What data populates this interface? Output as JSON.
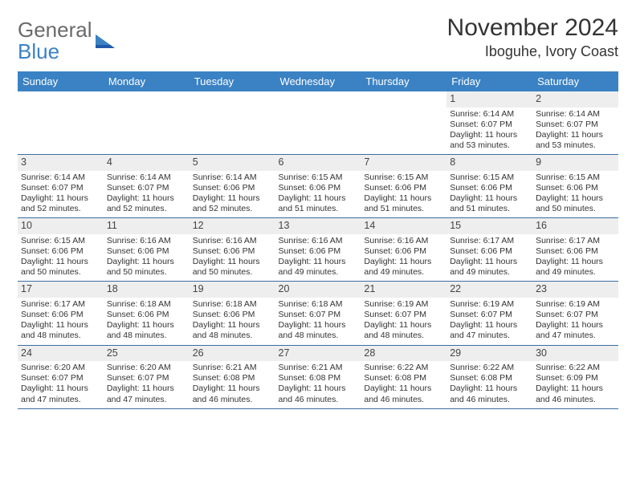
{
  "brand": {
    "name_top": "General",
    "name_bottom": "Blue",
    "text_color": "#6a6a6a",
    "accent_color": "#3b82c4"
  },
  "title": "November 2024",
  "subtitle": "Iboguhe, Ivory Coast",
  "colors": {
    "header_bg": "#3b82c4",
    "header_text": "#ffffff",
    "daynum_bg": "#eeeeee",
    "row_divider": "#3b6ea0",
    "body_text": "#333333"
  },
  "typography": {
    "title_fontsize": 30,
    "subtitle_fontsize": 18,
    "weekday_fontsize": 13,
    "daynum_fontsize": 12.5,
    "cell_fontsize": 10.5
  },
  "weekdays": [
    "Sunday",
    "Monday",
    "Tuesday",
    "Wednesday",
    "Thursday",
    "Friday",
    "Saturday"
  ],
  "weeks": [
    [
      {
        "n": "",
        "sr": "",
        "ss": "",
        "dl": ""
      },
      {
        "n": "",
        "sr": "",
        "ss": "",
        "dl": ""
      },
      {
        "n": "",
        "sr": "",
        "ss": "",
        "dl": ""
      },
      {
        "n": "",
        "sr": "",
        "ss": "",
        "dl": ""
      },
      {
        "n": "",
        "sr": "",
        "ss": "",
        "dl": ""
      },
      {
        "n": "1",
        "sr": "Sunrise: 6:14 AM",
        "ss": "Sunset: 6:07 PM",
        "dl": "Daylight: 11 hours and 53 minutes."
      },
      {
        "n": "2",
        "sr": "Sunrise: 6:14 AM",
        "ss": "Sunset: 6:07 PM",
        "dl": "Daylight: 11 hours and 53 minutes."
      }
    ],
    [
      {
        "n": "3",
        "sr": "Sunrise: 6:14 AM",
        "ss": "Sunset: 6:07 PM",
        "dl": "Daylight: 11 hours and 52 minutes."
      },
      {
        "n": "4",
        "sr": "Sunrise: 6:14 AM",
        "ss": "Sunset: 6:07 PM",
        "dl": "Daylight: 11 hours and 52 minutes."
      },
      {
        "n": "5",
        "sr": "Sunrise: 6:14 AM",
        "ss": "Sunset: 6:06 PM",
        "dl": "Daylight: 11 hours and 52 minutes."
      },
      {
        "n": "6",
        "sr": "Sunrise: 6:15 AM",
        "ss": "Sunset: 6:06 PM",
        "dl": "Daylight: 11 hours and 51 minutes."
      },
      {
        "n": "7",
        "sr": "Sunrise: 6:15 AM",
        "ss": "Sunset: 6:06 PM",
        "dl": "Daylight: 11 hours and 51 minutes."
      },
      {
        "n": "8",
        "sr": "Sunrise: 6:15 AM",
        "ss": "Sunset: 6:06 PM",
        "dl": "Daylight: 11 hours and 51 minutes."
      },
      {
        "n": "9",
        "sr": "Sunrise: 6:15 AM",
        "ss": "Sunset: 6:06 PM",
        "dl": "Daylight: 11 hours and 50 minutes."
      }
    ],
    [
      {
        "n": "10",
        "sr": "Sunrise: 6:15 AM",
        "ss": "Sunset: 6:06 PM",
        "dl": "Daylight: 11 hours and 50 minutes."
      },
      {
        "n": "11",
        "sr": "Sunrise: 6:16 AM",
        "ss": "Sunset: 6:06 PM",
        "dl": "Daylight: 11 hours and 50 minutes."
      },
      {
        "n": "12",
        "sr": "Sunrise: 6:16 AM",
        "ss": "Sunset: 6:06 PM",
        "dl": "Daylight: 11 hours and 50 minutes."
      },
      {
        "n": "13",
        "sr": "Sunrise: 6:16 AM",
        "ss": "Sunset: 6:06 PM",
        "dl": "Daylight: 11 hours and 49 minutes."
      },
      {
        "n": "14",
        "sr": "Sunrise: 6:16 AM",
        "ss": "Sunset: 6:06 PM",
        "dl": "Daylight: 11 hours and 49 minutes."
      },
      {
        "n": "15",
        "sr": "Sunrise: 6:17 AM",
        "ss": "Sunset: 6:06 PM",
        "dl": "Daylight: 11 hours and 49 minutes."
      },
      {
        "n": "16",
        "sr": "Sunrise: 6:17 AM",
        "ss": "Sunset: 6:06 PM",
        "dl": "Daylight: 11 hours and 49 minutes."
      }
    ],
    [
      {
        "n": "17",
        "sr": "Sunrise: 6:17 AM",
        "ss": "Sunset: 6:06 PM",
        "dl": "Daylight: 11 hours and 48 minutes."
      },
      {
        "n": "18",
        "sr": "Sunrise: 6:18 AM",
        "ss": "Sunset: 6:06 PM",
        "dl": "Daylight: 11 hours and 48 minutes."
      },
      {
        "n": "19",
        "sr": "Sunrise: 6:18 AM",
        "ss": "Sunset: 6:06 PM",
        "dl": "Daylight: 11 hours and 48 minutes."
      },
      {
        "n": "20",
        "sr": "Sunrise: 6:18 AM",
        "ss": "Sunset: 6:07 PM",
        "dl": "Daylight: 11 hours and 48 minutes."
      },
      {
        "n": "21",
        "sr": "Sunrise: 6:19 AM",
        "ss": "Sunset: 6:07 PM",
        "dl": "Daylight: 11 hours and 48 minutes."
      },
      {
        "n": "22",
        "sr": "Sunrise: 6:19 AM",
        "ss": "Sunset: 6:07 PM",
        "dl": "Daylight: 11 hours and 47 minutes."
      },
      {
        "n": "23",
        "sr": "Sunrise: 6:19 AM",
        "ss": "Sunset: 6:07 PM",
        "dl": "Daylight: 11 hours and 47 minutes."
      }
    ],
    [
      {
        "n": "24",
        "sr": "Sunrise: 6:20 AM",
        "ss": "Sunset: 6:07 PM",
        "dl": "Daylight: 11 hours and 47 minutes."
      },
      {
        "n": "25",
        "sr": "Sunrise: 6:20 AM",
        "ss": "Sunset: 6:07 PM",
        "dl": "Daylight: 11 hours and 47 minutes."
      },
      {
        "n": "26",
        "sr": "Sunrise: 6:21 AM",
        "ss": "Sunset: 6:08 PM",
        "dl": "Daylight: 11 hours and 46 minutes."
      },
      {
        "n": "27",
        "sr": "Sunrise: 6:21 AM",
        "ss": "Sunset: 6:08 PM",
        "dl": "Daylight: 11 hours and 46 minutes."
      },
      {
        "n": "28",
        "sr": "Sunrise: 6:22 AM",
        "ss": "Sunset: 6:08 PM",
        "dl": "Daylight: 11 hours and 46 minutes."
      },
      {
        "n": "29",
        "sr": "Sunrise: 6:22 AM",
        "ss": "Sunset: 6:08 PM",
        "dl": "Daylight: 11 hours and 46 minutes."
      },
      {
        "n": "30",
        "sr": "Sunrise: 6:22 AM",
        "ss": "Sunset: 6:09 PM",
        "dl": "Daylight: 11 hours and 46 minutes."
      }
    ]
  ]
}
